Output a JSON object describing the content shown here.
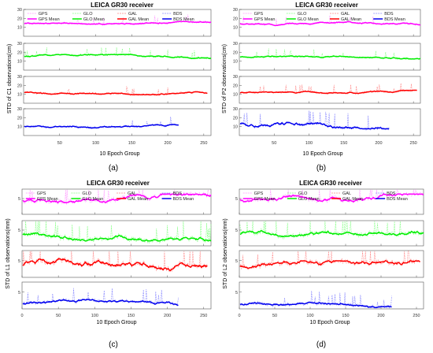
{
  "chart_data": [
    {
      "type": "line",
      "id": "a",
      "sublabel": "(a)",
      "title": "LEICA GR30 receiver",
      "ylabel": "STD of C1 observations(cm)",
      "xlabel": "10 Epoch Group",
      "xticks": [
        50,
        100,
        150,
        200,
        250
      ],
      "xlim": [
        0,
        260
      ],
      "legend": [
        "GPS",
        "GLO",
        "GAL",
        "BDS",
        "GPS Mean",
        "GLO Mean",
        "GAL Mean",
        "BDS Mean"
      ],
      "series": [
        {
          "name": "GPS",
          "ylim": [
            0,
            30
          ],
          "yticks": [
            10,
            20,
            30
          ],
          "base": 14,
          "amp": 2,
          "noise": 2.5,
          "spikes": 3,
          "end": 260
        },
        {
          "name": "GLO",
          "ylim": [
            0,
            30
          ],
          "yticks": [
            10,
            20,
            30
          ],
          "base": 15,
          "amp": 2,
          "noise": 2.5,
          "spikes": 4,
          "end": 260
        },
        {
          "name": "GAL",
          "ylim": [
            0,
            30
          ],
          "yticks": [
            10,
            20,
            30
          ],
          "base": 12,
          "amp": 2,
          "noise": 2.5,
          "spikes": 4,
          "end": 255
        },
        {
          "name": "BDS",
          "ylim": [
            0,
            30
          ],
          "yticks": [
            10,
            20,
            30
          ],
          "base": 10,
          "amp": 2,
          "noise": 2.5,
          "spikes": 4,
          "end": 215
        }
      ]
    },
    {
      "type": "line",
      "id": "b",
      "sublabel": "(b)",
      "title": "LEICA GR30 receiver",
      "ylabel": "STD of P2 observations(cm)",
      "xlabel": "10 Epoch Group",
      "xticks": [
        50,
        100,
        150,
        200,
        250
      ],
      "xlim": [
        0,
        260
      ],
      "legend": [
        "GPS",
        "GLO",
        "GAL",
        "BDS",
        "GPS Mean",
        "GLO Mean",
        "GAL Mean",
        "BDS Mean"
      ],
      "series": [
        {
          "name": "GPS",
          "ylim": [
            0,
            30
          ],
          "yticks": [
            10,
            20,
            30
          ],
          "base": 14,
          "amp": 2,
          "noise": 2.5,
          "spikes": 3,
          "end": 260
        },
        {
          "name": "GLO",
          "ylim": [
            0,
            30
          ],
          "yticks": [
            10,
            20,
            30
          ],
          "base": 15,
          "amp": 2,
          "noise": 2.5,
          "spikes": 4,
          "end": 260
        },
        {
          "name": "GAL",
          "ylim": [
            0,
            30
          ],
          "yticks": [
            10,
            20,
            30
          ],
          "base": 12,
          "amp": 2,
          "noise": 2.5,
          "spikes": 4,
          "end": 255
        },
        {
          "name": "BDS",
          "ylim": [
            0,
            30
          ],
          "yticks": [
            10,
            20,
            30
          ],
          "base": 14,
          "amp": 5,
          "noise": 3,
          "spikes": 6,
          "end": 215
        }
      ]
    },
    {
      "type": "line",
      "id": "c",
      "sublabel": "(c)",
      "title": "LEICA GR30 receiver",
      "ylabel": "STD of L1 observations(mm)",
      "xlabel": "10 Epoch Group",
      "xticks": [
        0,
        50,
        100,
        150,
        200,
        250
      ],
      "xlim": [
        0,
        260
      ],
      "legend": [
        "GPS",
        "GLO",
        "GAL",
        "BDS",
        "GPS Mean",
        "GLO Mean",
        "GAL Mean",
        "BDS Mean"
      ],
      "series": [
        {
          "name": "GPS",
          "ylim": [
            0,
            8
          ],
          "yticks": [
            5
          ],
          "base": 4.5,
          "amp": 1.5,
          "noise": 1.5,
          "spikes": 6,
          "end": 260
        },
        {
          "name": "GLO",
          "ylim": [
            0,
            8
          ],
          "yticks": [
            5
          ],
          "base": 3.5,
          "amp": 1.5,
          "noise": 1.5,
          "spikes": 6,
          "end": 260
        },
        {
          "name": "GAL",
          "ylim": [
            0,
            8
          ],
          "yticks": [
            5
          ],
          "base": 3.5,
          "amp": 2,
          "noise": 1.5,
          "spikes": 6,
          "end": 255
        },
        {
          "name": "BDS",
          "ylim": [
            0,
            8
          ],
          "yticks": [
            5
          ],
          "base": 1.5,
          "amp": 1,
          "noise": 1,
          "spikes": 6,
          "end": 215
        }
      ]
    },
    {
      "type": "line",
      "id": "d",
      "sublabel": "(d)",
      "title": "LEICA GR30 receiver",
      "ylabel": "STD of L2 observations(mm)",
      "xlabel": "10 Epoch Group",
      "xticks": [
        0,
        50,
        100,
        150,
        200,
        250
      ],
      "xlim": [
        0,
        260
      ],
      "legend": [
        "GPS",
        "GLO",
        "GAL",
        "BDS",
        "GPS Mean",
        "GLO Mean",
        "GAL Mean",
        "BDS Mean"
      ],
      "series": [
        {
          "name": "GPS",
          "ylim": [
            0,
            8
          ],
          "yticks": [
            5
          ],
          "base": 4.5,
          "amp": 1.5,
          "noise": 1.5,
          "spikes": 6,
          "end": 260
        },
        {
          "name": "GLO",
          "ylim": [
            0,
            8
          ],
          "yticks": [
            5
          ],
          "base": 3.5,
          "amp": 1.5,
          "noise": 1.5,
          "spikes": 6,
          "end": 260
        },
        {
          "name": "GAL",
          "ylim": [
            0,
            8
          ],
          "yticks": [
            5
          ],
          "base": 3,
          "amp": 1.5,
          "noise": 1.5,
          "spikes": 6,
          "end": 255
        },
        {
          "name": "BDS",
          "ylim": [
            0,
            8
          ],
          "yticks": [
            5
          ],
          "base": 1.2,
          "amp": 0.8,
          "noise": 1,
          "spikes": 5,
          "end": 215
        }
      ]
    }
  ],
  "colors": {
    "GPS": "#ff00ff",
    "GLO": "#00ee00",
    "GAL": "#ff0000",
    "BDS": "#0000ee",
    "GPS_light": "#ff99ff",
    "GLO_light": "#88ff88",
    "GAL_light": "#ff8888",
    "BDS_light": "#8888ff"
  }
}
